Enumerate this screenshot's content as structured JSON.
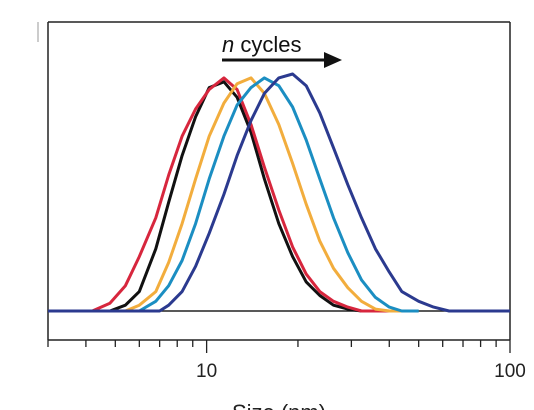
{
  "chart_data": {
    "type": "line",
    "xscale": "log",
    "xlim": [
      3,
      100
    ],
    "ylim": [
      0,
      1.25
    ],
    "xlabel": "Size (nm)",
    "x_tick_labels": [
      {
        "value": 10,
        "label": "10"
      },
      {
        "value": 100,
        "label": "100"
      }
    ],
    "annotation": {
      "text_italic": "n",
      "text_rest": " cycles",
      "arrow": "right"
    },
    "grid": false,
    "legend": "none",
    "series": [
      {
        "color": "#111111",
        "x": [
          4.8,
          5.4,
          6.0,
          6.8,
          7.5,
          8.3,
          9.2,
          10.2,
          11.4,
          12.6,
          14.0,
          15.5,
          17.3,
          19.2,
          21.3,
          23.6,
          26.2,
          29.2,
          32.4,
          36.0
        ],
        "y": [
          0.0,
          0.03,
          0.1,
          0.32,
          0.56,
          0.8,
          1.0,
          1.15,
          1.18,
          1.1,
          0.92,
          0.68,
          0.45,
          0.28,
          0.15,
          0.08,
          0.03,
          0.01,
          0.0,
          0.0
        ]
      },
      {
        "color": "#d7263d",
        "x": [
          4.2,
          4.8,
          5.4,
          6.0,
          6.8,
          7.5,
          8.3,
          9.2,
          10.2,
          11.4,
          12.6,
          14.0,
          15.5,
          17.3,
          19.2,
          21.3,
          23.6,
          26.2,
          29.2,
          32.4,
          36.0,
          40.0
        ],
        "y": [
          0.0,
          0.04,
          0.13,
          0.28,
          0.48,
          0.7,
          0.9,
          1.04,
          1.14,
          1.2,
          1.14,
          0.96,
          0.74,
          0.52,
          0.33,
          0.19,
          0.1,
          0.05,
          0.02,
          0.0,
          0.0,
          0.0
        ]
      },
      {
        "color": "#f2ad3d",
        "x": [
          5.4,
          6.0,
          6.8,
          7.5,
          8.3,
          9.2,
          10.2,
          11.4,
          12.6,
          14.0,
          15.5,
          17.3,
          19.2,
          21.3,
          23.6,
          26.2,
          29.2,
          32.4,
          36.0,
          40.0,
          44.0
        ],
        "y": [
          0.0,
          0.03,
          0.1,
          0.25,
          0.45,
          0.68,
          0.9,
          1.07,
          1.17,
          1.2,
          1.12,
          0.96,
          0.76,
          0.55,
          0.36,
          0.22,
          0.12,
          0.05,
          0.01,
          0.0,
          0.0
        ]
      },
      {
        "color": "#1b8ec2",
        "x": [
          6.0,
          6.8,
          7.5,
          8.3,
          9.2,
          10.2,
          11.4,
          12.6,
          14.0,
          15.5,
          17.3,
          19.2,
          21.3,
          23.6,
          26.2,
          29.2,
          32.4,
          36.0,
          40.0,
          44.0,
          50.0
        ],
        "y": [
          0.0,
          0.05,
          0.13,
          0.26,
          0.45,
          0.68,
          0.9,
          1.06,
          1.15,
          1.2,
          1.16,
          1.05,
          0.88,
          0.68,
          0.48,
          0.3,
          0.16,
          0.07,
          0.02,
          0.0,
          0.0
        ]
      },
      {
        "color": "#2b3a8f",
        "x": [
          7.0,
          7.5,
          8.3,
          9.2,
          10.2,
          11.4,
          12.6,
          14.0,
          15.5,
          17.3,
          19.2,
          21.3,
          23.6,
          26.2,
          29.2,
          32.4,
          36.0,
          40.0,
          44.0,
          50.0,
          56.0,
          63.0,
          70.0,
          80.0,
          90.0,
          100.0
        ],
        "y": [
          0.0,
          0.03,
          0.1,
          0.23,
          0.4,
          0.6,
          0.8,
          0.98,
          1.12,
          1.2,
          1.22,
          1.16,
          1.02,
          0.84,
          0.65,
          0.48,
          0.32,
          0.2,
          0.1,
          0.05,
          0.02,
          0.0,
          0.0,
          0.0,
          0.0,
          0.0
        ]
      }
    ]
  }
}
